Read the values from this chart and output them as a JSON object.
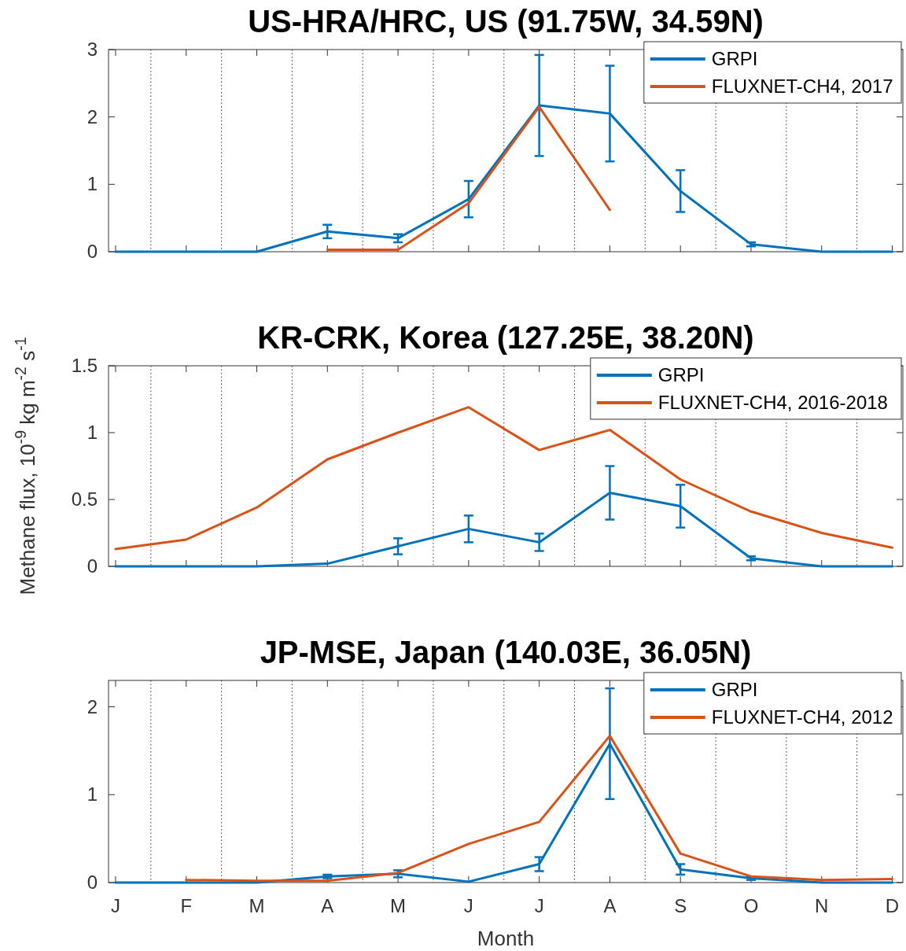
{
  "chart_data": [
    {
      "type": "line",
      "title": "US-HRA/HRC, US (91.75W, 34.59N)",
      "categories": [
        null,
        null,
        null,
        null,
        null,
        null,
        null,
        null,
        null,
        null,
        null,
        null
      ],
      "ylim": [
        0,
        3
      ],
      "yticks": [
        0,
        1,
        2,
        3
      ],
      "tick_labels": "y",
      "legend": "top right",
      "grid": false,
      "series": [
        {
          "name": "GRPI",
          "color": "#0072bd",
          "values": [
            0,
            0,
            0,
            0.3,
            0.2,
            0.78,
            2.17,
            2.05,
            0.9,
            0.11,
            0,
            0
          ],
          "errors": [
            null,
            null,
            null,
            0.1,
            0.06,
            0.27,
            0.75,
            0.71,
            0.31,
            0.03,
            null,
            null
          ]
        },
        {
          "name": "FLUXNET-CH4, 2017",
          "color": "#d95319",
          "values": [
            null,
            null,
            null,
            0.03,
            0.03,
            0.72,
            2.15,
            0.62,
            null,
            null,
            null,
            null
          ]
        }
      ]
    },
    {
      "type": "line",
      "title": "KR-CRK, Korea (127.25E, 38.20N)",
      "ylabel": "Methane flux, 10$^{-9}$ kg m$^{-2}$ s$^{-1}$",
      "categories": [
        null,
        null,
        null,
        null,
        null,
        null,
        null,
        null,
        null,
        null,
        null,
        null
      ],
      "ylim": [
        0,
        1.5
      ],
      "yticks": [
        0,
        0.5,
        1,
        1.5
      ],
      "tick_labels": "y",
      "legend": "top right",
      "grid": false,
      "series": [
        {
          "name": "GRPI",
          "color": "#0072bd",
          "values": [
            0,
            0,
            0,
            0.02,
            0.15,
            0.28,
            0.18,
            0.55,
            0.45,
            0.06,
            0,
            0
          ],
          "errors": [
            null,
            null,
            null,
            null,
            0.06,
            0.1,
            0.065,
            0.2,
            0.16,
            0.015,
            null,
            null
          ]
        },
        {
          "name": "FLUXNET-CH4, 2016-2018",
          "color": "#d95319",
          "values": [
            0.13,
            0.2,
            0.44,
            0.8,
            1.0,
            1.19,
            0.87,
            1.02,
            0.65,
            0.41,
            0.25,
            0.14
          ]
        }
      ]
    },
    {
      "type": "line",
      "title": "JP-MSE, Japan (140.03E, 36.05N)",
      "xlabel": "Month",
      "categories": [
        "J",
        "F",
        "M",
        "A",
        "M",
        "J",
        "J",
        "A",
        "S",
        "O",
        "N",
        "D"
      ],
      "ylim": [
        0,
        2.3
      ],
      "yticks": [
        0,
        1,
        2
      ],
      "legend": "top right",
      "grid": false,
      "series": [
        {
          "name": "GRPI",
          "color": "#0072bd",
          "values": [
            0,
            0,
            0,
            0.07,
            0.1,
            0.01,
            0.21,
            1.58,
            0.15,
            0.05,
            0,
            0
          ],
          "errors": [
            null,
            null,
            null,
            0.02,
            0.04,
            null,
            0.08,
            0.63,
            0.06,
            0.02,
            null,
            null
          ]
        },
        {
          "name": "FLUXNET-CH4, 2012",
          "color": "#d95319",
          "values": [
            null,
            0.03,
            0.02,
            0.02,
            0.11,
            0.44,
            0.69,
            1.67,
            0.33,
            0.07,
            0.03,
            0.04
          ]
        }
      ]
    }
  ]
}
